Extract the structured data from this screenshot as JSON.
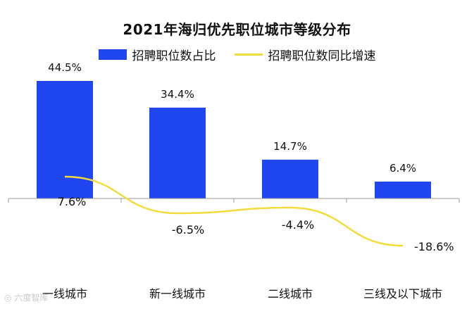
{
  "chart_data": {
    "type": "bar",
    "title": "2021年海归优先职位城市等级分布",
    "categories": [
      "一线城市",
      "新一线城市",
      "二线城市",
      "三线及以下城市"
    ],
    "series": [
      {
        "name": "招聘职位数占比",
        "type": "bar",
        "values": [
          44.5,
          34.4,
          14.7,
          6.4
        ],
        "labels": [
          "44.5%",
          "34.4%",
          "14.7%",
          "6.4%"
        ],
        "color": "#2046f0"
      },
      {
        "name": "招聘职位数同比增速",
        "type": "line",
        "values": [
          7.6,
          -6.5,
          -4.4,
          -18.6
        ],
        "labels": [
          "7.6%",
          "-6.5%",
          "-4.4%",
          "-18.6%"
        ],
        "color": "#f2dc3c"
      }
    ],
    "xlabel": "",
    "ylabel": "",
    "legend": "top-center",
    "grid": false
  },
  "watermark": "六度智库"
}
